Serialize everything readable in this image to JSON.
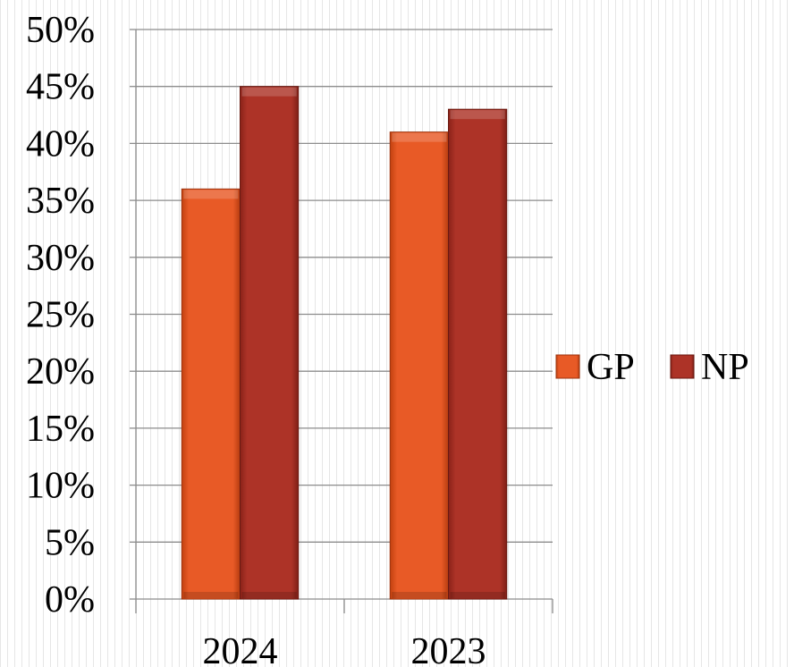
{
  "chart_data": {
    "type": "bar",
    "categories": [
      "2024",
      "2023"
    ],
    "series": [
      {
        "name": "GP",
        "values": [
          36,
          41
        ],
        "color": "#e2511f"
      },
      {
        "name": "NP",
        "values": [
          45,
          43
        ],
        "color": "#a83024"
      }
    ],
    "y_ticks": [
      "0%",
      "5%",
      "10%",
      "15%",
      "20%",
      "25%",
      "30%",
      "35%",
      "40%",
      "45%",
      "50%"
    ],
    "ylim": [
      0,
      50
    ],
    "y_unit": "%",
    "grid": true,
    "legend_position": "right",
    "title": "",
    "xlabel": "",
    "ylabel": ""
  }
}
